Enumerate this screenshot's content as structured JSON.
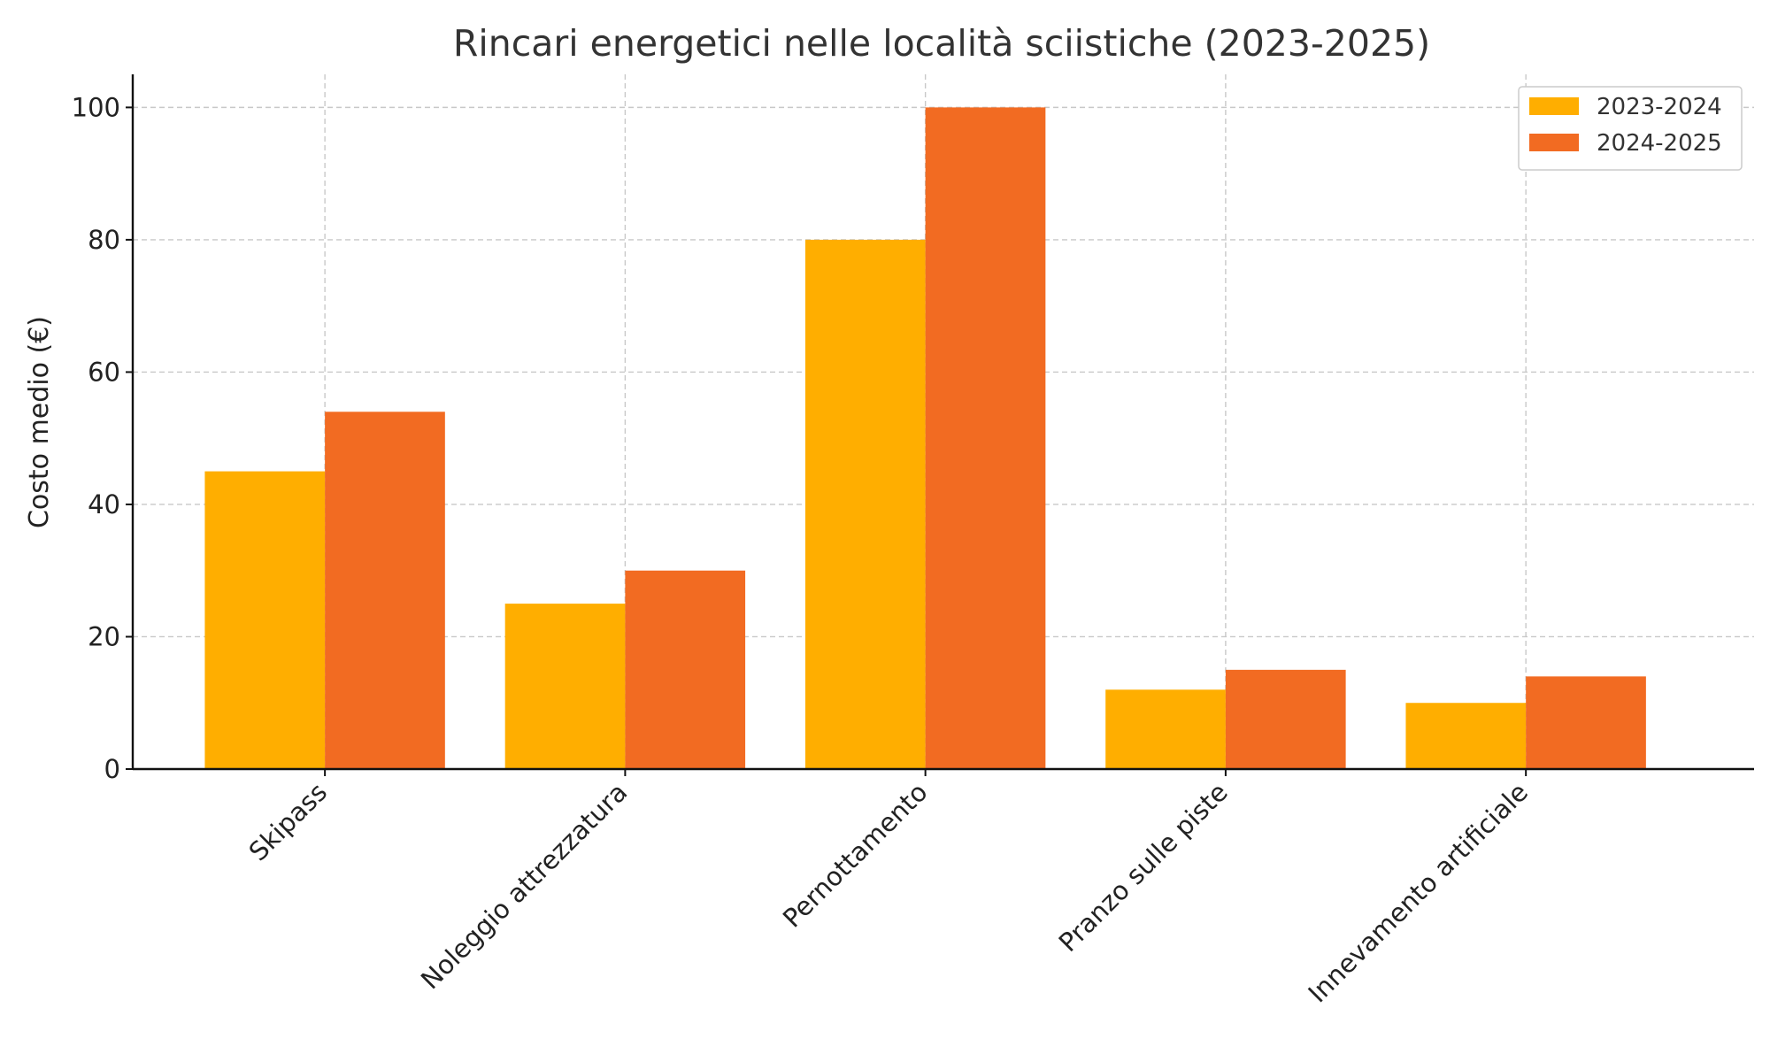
{
  "chart_data": {
    "type": "bar",
    "title": "Rincari energetici nelle località sciistiche (2023-2025)",
    "xlabel": "",
    "ylabel": "Costo medio (€)",
    "categories": [
      "Skipass",
      "Noleggio attrezzatura",
      "Pernottamento",
      "Pranzo sulle piste",
      "Innevamento artificiale"
    ],
    "series": [
      {
        "name": "2023-2024",
        "color": "#FFAE00",
        "values": [
          45,
          25,
          80,
          12,
          10
        ]
      },
      {
        "name": "2024-2025",
        "color": "#F26B22",
        "values": [
          54,
          30,
          100,
          15,
          14
        ]
      }
    ],
    "ylim": [
      0,
      105
    ],
    "yticks": [
      0,
      20,
      40,
      60,
      80,
      100
    ],
    "grid": true,
    "legend_position": "top-right"
  }
}
